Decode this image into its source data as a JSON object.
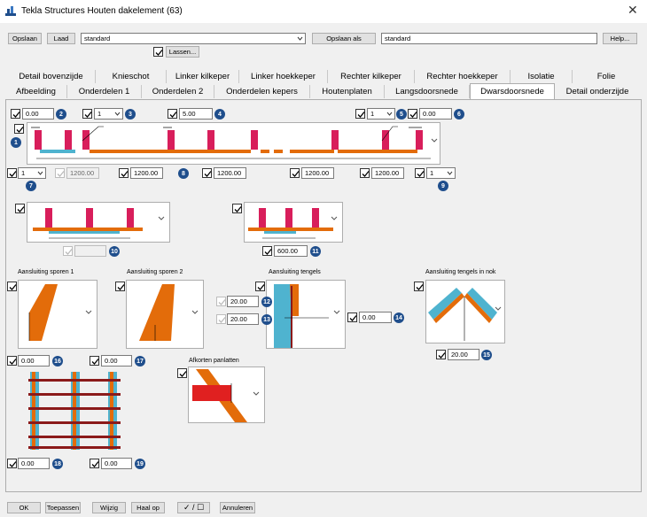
{
  "window": {
    "title": "Tekla Structures  Houten dakelement (63)",
    "close_glyph": "✕"
  },
  "toolbar": {
    "save_label": "Opslaan",
    "load_label": "Laad",
    "preset_value": "standard",
    "save_as_label": "Opslaan als",
    "save_as_value": "standard",
    "help_label": "Help...",
    "welds_label": "Lassen..."
  },
  "tabs_row1": [
    "Detail bovenzijde",
    "Knieschot",
    "Linker kilkeper",
    "Linker hoekkeper",
    "Rechter kilkeper",
    "Rechter hoekkeper",
    "Isolatie",
    "Folie"
  ],
  "tabs_row2": [
    "Afbeelding",
    "Onderdelen 1",
    "Onderdelen 2",
    "Onderdelen kepers",
    "Houtenplaten",
    "Langsdoorsnede",
    "Dwarsdoorsnede",
    "Detail onderzijde"
  ],
  "active_tab": "Dwarsdoorsnede",
  "fields": {
    "f2": "0.00",
    "f3": "1",
    "f4": "5.00",
    "f5": "1",
    "f6": "0.00",
    "f7": "1",
    "f_dis1": "1200.00",
    "f8a": "1200.00",
    "f8b": "1200.00",
    "f8c": "1200.00",
    "f8d": "1200.00",
    "f9": "1",
    "f11": "600.00",
    "f12": "20.00",
    "f13": "20.00",
    "f14": "0.00",
    "f15": "20.00",
    "f16": "0.00",
    "f17": "0.00",
    "f18": "0.00",
    "f19": "0.00"
  },
  "markers": [
    "1",
    "2",
    "3",
    "4",
    "5",
    "6",
    "7",
    "8",
    "9",
    "10",
    "11",
    "12",
    "13",
    "14",
    "15",
    "16",
    "17",
    "18",
    "19"
  ],
  "labels": {
    "sporen1": "Aansluiting sporen 1",
    "sporen2": "Aansluiting sporen 2",
    "tengels": "Aansluiting tengels",
    "tengels_nok": "Aansluiting tengels in nok",
    "afkorten": "Afkorten panlatten"
  },
  "footer": {
    "ok": "OK",
    "apply": "Toepassen",
    "modify": "Wijzig",
    "get": "Haal op",
    "toggle": "✓ / ☐",
    "cancel": "Annuleren"
  },
  "colors": {
    "rafter": "#d81e5b",
    "batten": "#e36c0a",
    "insulation": "#4fb3cf",
    "marker": "#1f4e8c"
  }
}
